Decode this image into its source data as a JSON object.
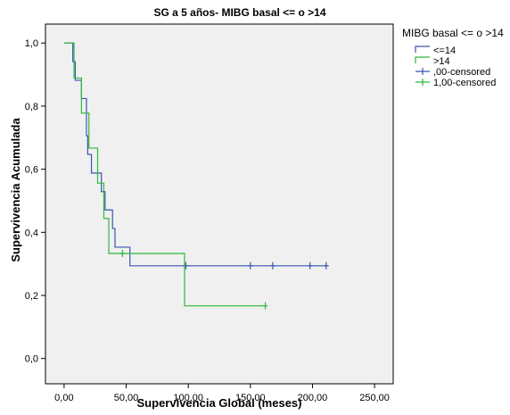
{
  "chart_data": {
    "type": "line",
    "title": "SG a 5 años- MIBG basal <= o >14",
    "xlabel": "Supervivencia Global (meses)",
    "ylabel": "Supervivencia Acumulada",
    "xlim": [
      -15,
      265
    ],
    "ylim": [
      -0.08,
      1.06
    ],
    "x_ticks": [
      0,
      50,
      100,
      150,
      200,
      250
    ],
    "x_tick_labels": [
      "0,00",
      "50,00",
      "100,00",
      "150,00",
      "200,00",
      "250,00"
    ],
    "y_ticks": [
      0,
      0.2,
      0.4,
      0.6,
      0.8,
      1.0
    ],
    "y_tick_labels": [
      "0,0",
      "0,2",
      "0,4",
      "0,6",
      "0,8",
      "1,0"
    ],
    "grid": false,
    "legend": {
      "title": "MIBG basal <= o >14",
      "placement": "right",
      "entries": [
        {
          "label": "<=14",
          "kind": "step",
          "color": "#3a55b0"
        },
        {
          "label": ">14",
          "kind": "step",
          "color": "#2db83a"
        },
        {
          "label": ",00-censored",
          "kind": "censor",
          "color": "#3a55b0"
        },
        {
          "label": "1,00-censored",
          "kind": "censor",
          "color": "#2db83a"
        }
      ]
    },
    "series": [
      {
        "name": "<=14",
        "color": "#3a55b0",
        "steps": [
          [
            0,
            1.0
          ],
          [
            7,
            0.941
          ],
          [
            9,
            0.882
          ],
          [
            14,
            0.824
          ],
          [
            18,
            0.706
          ],
          [
            19,
            0.647
          ],
          [
            22,
            0.588
          ],
          [
            30,
            0.529
          ],
          [
            33,
            0.471
          ],
          [
            39,
            0.412
          ],
          [
            41,
            0.353
          ],
          [
            53,
            0.294
          ],
          [
            212,
            0.294
          ]
        ],
        "censored": [
          [
            98,
            0.294
          ],
          [
            150,
            0.294
          ],
          [
            168,
            0.294
          ],
          [
            198,
            0.294
          ],
          [
            211,
            0.294
          ]
        ]
      },
      {
        "name": ">14",
        "color": "#2db83a",
        "steps": [
          [
            0,
            1.0
          ],
          [
            8,
            0.889
          ],
          [
            14,
            0.778
          ],
          [
            20,
            0.667
          ],
          [
            27,
            0.556
          ],
          [
            32,
            0.444
          ],
          [
            36,
            0.333
          ],
          [
            97,
            0.167
          ],
          [
            162,
            0.167
          ]
        ],
        "censored": [
          [
            47,
            0.333
          ],
          [
            162,
            0.167
          ]
        ]
      }
    ]
  },
  "style": {
    "plot_bg": "#f0f0f0",
    "frame_color": "#000000"
  }
}
